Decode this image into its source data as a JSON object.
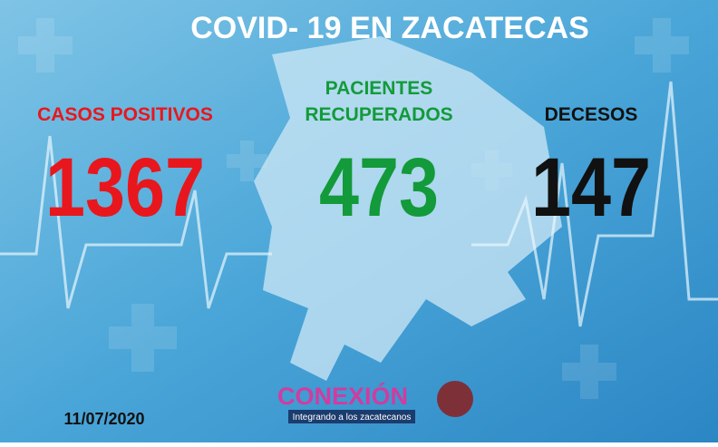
{
  "title": "COVID- 19 EN ZACATECAS",
  "stats": [
    {
      "label": [
        "CASOS POSITIVOS"
      ],
      "value": "1367"
    },
    {
      "label": [
        "PACIENTES",
        "RECUPERADOS"
      ],
      "value": "473"
    },
    {
      "label": [
        "DECESOS"
      ],
      "value": "147"
    }
  ],
  "date": "11/07/2020",
  "logo": {
    "name": "CONEXIÓN",
    "tagline": "Integrando a los zacatecanos"
  }
}
